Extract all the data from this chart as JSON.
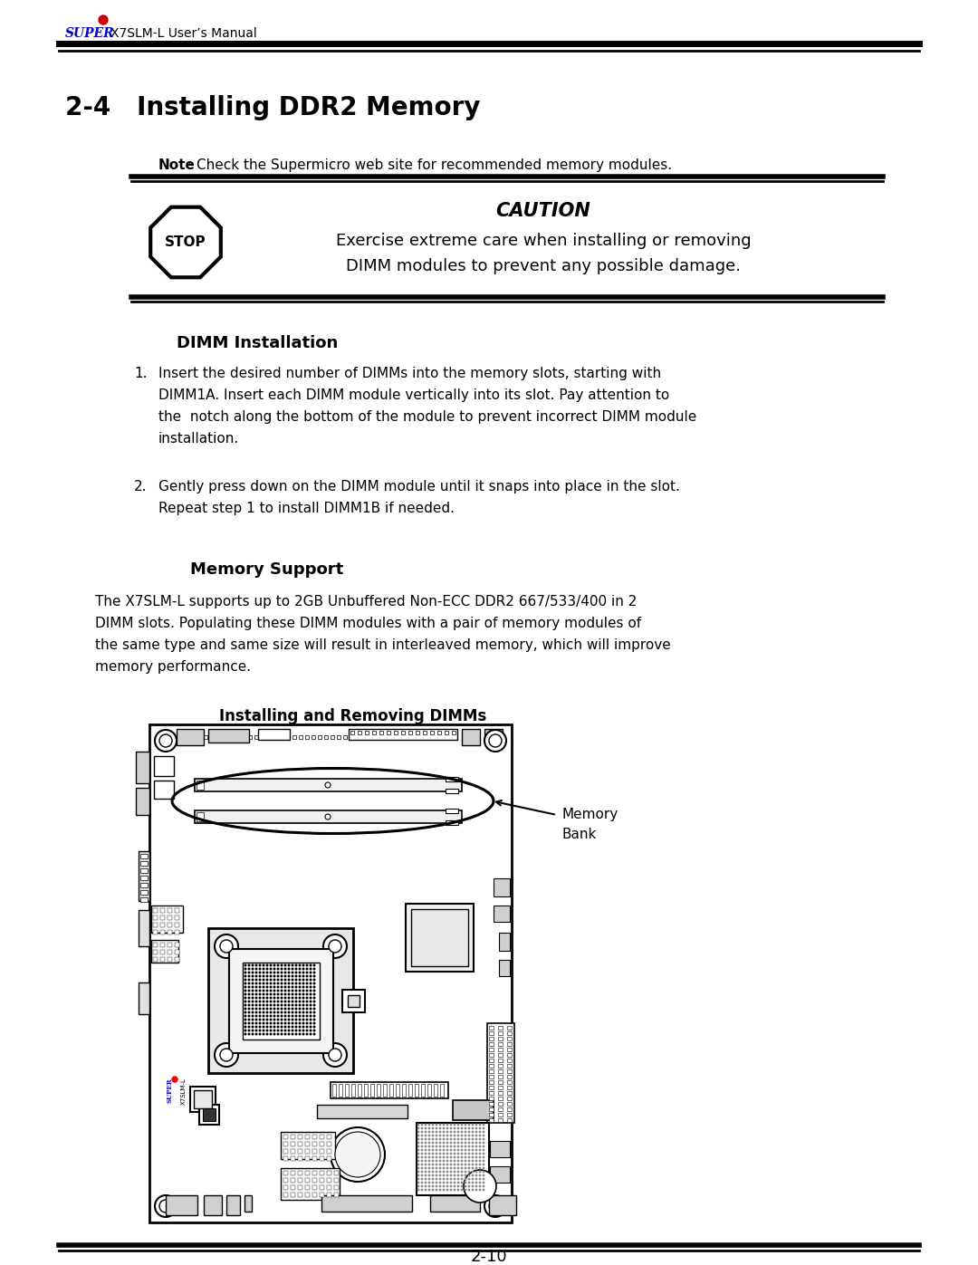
{
  "bg_color": "#ffffff",
  "header_super": "SUPER",
  "header_bullet_color": "#cc0000",
  "header_super_color": "#0000cc",
  "header_rest": "X7SLM-L User’s Manual",
  "title": "2-4   Installing DDR2 Memory",
  "note_bold": "Note",
  "note_rest": ": Check the Supermicro web site for recommended memory modules.",
  "caution_title": "CAUTION",
  "caution_line1": "Exercise extreme care when installing or removing",
  "caution_line2": "DIMM modules to prevent any possible damage.",
  "dimm_title": "DIMM Installation",
  "item1_num": "1.",
  "item1_line1": "Insert the desired number of DIMMs into the memory slots, starting with",
  "item1_line2": "DIMM1A. Insert each DIMM module vertically into its slot. Pay attention to",
  "item1_line3": "the  notch along the bottom of the module to prevent incorrect DIMM module",
  "item1_line4": "installation.",
  "item2_num": "2.",
  "item2_line1": "Gently press down on the DIMM module until it snaps into place in the slot.",
  "item2_line2": "Repeat step 1 to install DIMM1B if needed.",
  "mem_title": "Memory Support",
  "mem_line1": "The X7SLM-L supports up to 2GB Unbuffered Non-ECC DDR2 667/533/400 in 2",
  "mem_line2": "DIMM slots. Populating these DIMM modules with a pair of memory modules of",
  "mem_line3": "the same type and same size will result in interleaved memory, which will improve",
  "mem_line4": "memory performance.",
  "diag_title": "Installing and Removing DIMMs",
  "mem_bank_label1": "Memory",
  "mem_bank_label2": "Bank",
  "page_num": "2-10"
}
